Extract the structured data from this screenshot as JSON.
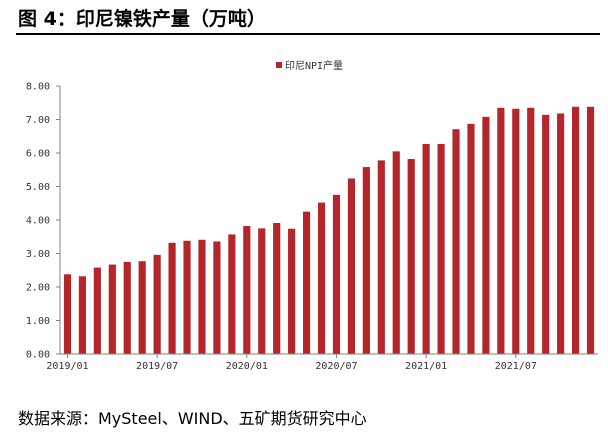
{
  "figure": {
    "title": "图 4：印尼镍铁产量（万吨）",
    "source": "数据来源：MySteel、WIND、五矿期货研究中心"
  },
  "colors": {
    "bar": "#b2262c",
    "axis": "#808080",
    "text": "#333333"
  },
  "chart_data": {
    "type": "bar",
    "title": "",
    "xlabel": "",
    "ylabel": "",
    "ylim": [
      0,
      8
    ],
    "yticks": [
      "0.00",
      "1.00",
      "2.00",
      "3.00",
      "4.00",
      "5.00",
      "6.00",
      "7.00",
      "8.00"
    ],
    "legend_position": "top-center",
    "grid": false,
    "categories": [
      "2019/01",
      "2019/02",
      "2019/03",
      "2019/04",
      "2019/05",
      "2019/06",
      "2019/07",
      "2019/08",
      "2019/09",
      "2019/10",
      "2019/11",
      "2019/12",
      "2020/01",
      "2020/02",
      "2020/03",
      "2020/04",
      "2020/05",
      "2020/06",
      "2020/07",
      "2020/08",
      "2020/09",
      "2020/10",
      "2020/11",
      "2020/12",
      "2021/01",
      "2021/02",
      "2021/03",
      "2021/04",
      "2021/05",
      "2021/06",
      "2021/07",
      "2021/08",
      "2021/09",
      "2021/10",
      "2021/11",
      "2021/12"
    ],
    "xtick_labels": [
      "2019/01",
      "2019/07",
      "2020/01",
      "2020/07",
      "2021/01",
      "2021/07"
    ],
    "series": [
      {
        "name": "印尼NPI产量",
        "values": [
          2.38,
          2.32,
          2.58,
          2.67,
          2.75,
          2.77,
          2.96,
          3.32,
          3.38,
          3.41,
          3.36,
          3.57,
          3.82,
          3.75,
          3.91,
          3.74,
          4.25,
          4.52,
          4.75,
          5.24,
          5.58,
          5.78,
          6.05,
          5.82,
          6.27,
          6.27,
          6.71,
          6.87,
          7.08,
          7.35,
          7.32,
          7.35,
          7.14,
          7.18,
          7.38,
          7.38
        ]
      }
    ]
  }
}
